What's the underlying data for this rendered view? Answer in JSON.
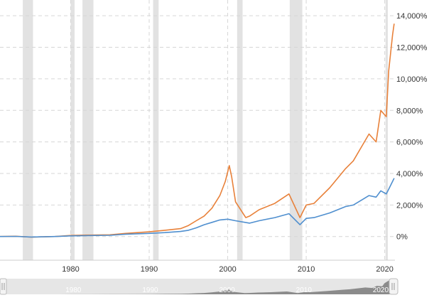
{
  "chart_data": {
    "type": "line",
    "title": "",
    "xlabel": "",
    "ylabel": "",
    "xlim": [
      1971.0,
      2021.3
    ],
    "ylim": [
      -1500,
      15000
    ],
    "x_ticks": [
      1980,
      1990,
      2000,
      2010,
      2020
    ],
    "x_tick_labels": [
      "1980",
      "1990",
      "2000",
      "2010",
      "2020"
    ],
    "y_ticks": [
      0,
      2000,
      4000,
      6000,
      8000,
      10000,
      12000,
      14000
    ],
    "y_tick_labels": [
      "0%",
      "2,000%",
      "4,000%",
      "6,000%",
      "8,000%",
      "10,000%",
      "12,000%",
      "14,000%"
    ],
    "grid": true,
    "recession_periods": [
      [
        1973.9,
        1975.2
      ],
      [
        1980.0,
        1980.5
      ],
      [
        1981.5,
        1982.9
      ],
      [
        1990.5,
        1991.2
      ],
      [
        2001.2,
        2001.9
      ],
      [
        2007.9,
        2009.5
      ],
      [
        2020.1,
        2020.4
      ]
    ],
    "series": [
      {
        "color": "#e8813a",
        "x": [
          1971,
          1973,
          1975,
          1978,
          1980,
          1982,
          1985,
          1987,
          1990,
          1992,
          1994,
          1995,
          1996,
          1997,
          1998,
          1999,
          1999.7,
          2000.2,
          2000.5,
          2001,
          2002.3,
          2002.8,
          2004,
          2006,
          2007.8,
          2009.2,
          2010,
          2011,
          2013,
          2015,
          2016,
          2018,
          2018.9,
          2019.5,
          2020.2,
          2020.5,
          2021,
          2021.2
        ],
        "y": [
          0,
          20,
          -40,
          0,
          70,
          90,
          110,
          200,
          300,
          400,
          500,
          700,
          1000,
          1300,
          1800,
          2600,
          3500,
          4500,
          3800,
          2200,
          1200,
          1300,
          1700,
          2100,
          2700,
          1200,
          2000,
          2100,
          3100,
          4300,
          4800,
          6500,
          6000,
          8000,
          7600,
          10500,
          12800,
          13500
        ]
      },
      {
        "color": "#4f8fcf",
        "x": [
          1971,
          1973,
          1975,
          1978,
          1980,
          1982,
          1985,
          1987,
          1990,
          1992,
          1994,
          1995,
          1996,
          1997,
          1998,
          1999,
          2000,
          2001,
          2002.8,
          2004,
          2006,
          2007.8,
          2009.2,
          2010,
          2011,
          2013,
          2015,
          2016,
          2018,
          2018.9,
          2019.5,
          2020.2,
          2020.5,
          2021,
          2021.2
        ],
        "y": [
          0,
          10,
          -30,
          0,
          40,
          60,
          80,
          150,
          200,
          250,
          320,
          400,
          550,
          750,
          900,
          1050,
          1100,
          1000,
          850,
          1000,
          1200,
          1450,
          750,
          1150,
          1200,
          1500,
          1900,
          2000,
          2600,
          2500,
          2900,
          2700,
          3000,
          3500,
          3700
        ]
      }
    ]
  },
  "navigator": {
    "labels": [
      "1980",
      "1990",
      "2000",
      "2010",
      "2020"
    ]
  }
}
